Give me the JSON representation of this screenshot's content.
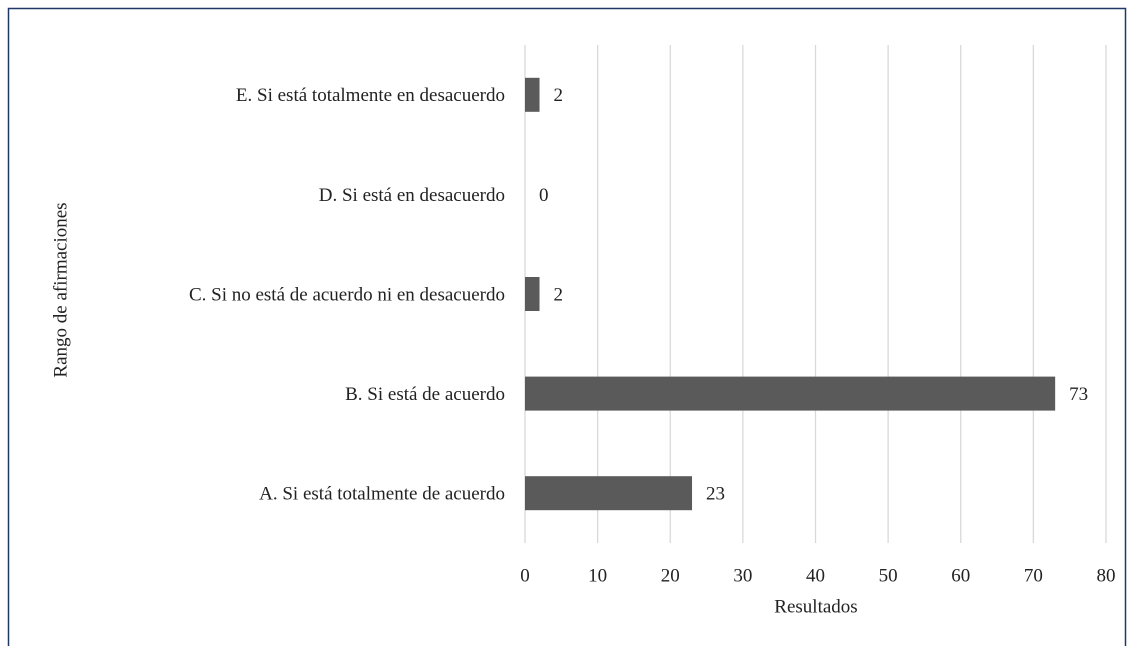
{
  "chart_data": {
    "type": "bar",
    "orientation": "horizontal",
    "categories": [
      "A. Si está totalmente de acuerdo",
      "B. Si está de acuerdo",
      "C. Si no está de acuerdo ni en desacuerdo",
      "D. Si está en desacuerdo",
      "E. Si está totalmente en desacuerdo"
    ],
    "values": [
      23,
      73,
      2,
      0,
      2
    ],
    "color": "#5a5a5a",
    "xlim": [
      0,
      80
    ],
    "xticks": [
      0,
      10,
      20,
      30,
      40,
      50,
      60,
      70,
      80
    ],
    "xlabel": "Resultados",
    "ylabel": "Rango de afirmaciones",
    "grid": true
  }
}
